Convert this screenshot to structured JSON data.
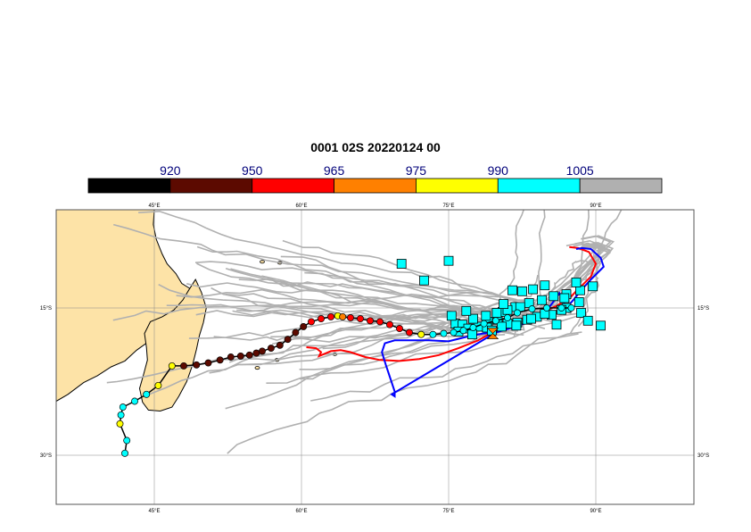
{
  "title": "0001 02S 20220124 00",
  "colorbar": {
    "labels": [
      "920",
      "950",
      "965",
      "975",
      "990",
      "1005"
    ],
    "colors": [
      "#000000",
      "#5c0a00",
      "#ff0000",
      "#ff8000",
      "#ffff00",
      "#00ffff",
      "#b0b0b0"
    ]
  },
  "map": {
    "lon_range": [
      35,
      100
    ],
    "lat_range": [
      -35,
      -5
    ],
    "land_color": "#fde3a7",
    "lon_labels": [
      "45°E",
      "60°E",
      "75°E",
      "90°E"
    ],
    "lat_labels": [
      "15°S",
      "30°S"
    ]
  },
  "tracks": {
    "observed": [
      [
        46.8,
        -20.9
      ],
      [
        48.0,
        -20.9
      ],
      [
        49.3,
        -20.8
      ],
      [
        50.5,
        -20.6
      ],
      [
        51.7,
        -20.3
      ],
      [
        52.8,
        -20.0
      ],
      [
        53.8,
        -19.9
      ],
      [
        54.7,
        -19.8
      ],
      [
        55.4,
        -19.6
      ],
      [
        56.0,
        -19.4
      ],
      [
        56.9,
        -19.1
      ],
      [
        57.8,
        -18.8
      ],
      [
        58.6,
        -18.2
      ],
      [
        59.4,
        -17.5
      ],
      [
        60.2,
        -16.9
      ],
      [
        61.0,
        -16.4
      ],
      [
        62.0,
        -16.1
      ],
      [
        63.0,
        -15.9
      ],
      [
        63.7,
        -15.8
      ],
      [
        64.2,
        -15.9
      ],
      [
        65.0,
        -16.0
      ],
      [
        66.0,
        -16.1
      ],
      [
        67.0,
        -16.3
      ],
      [
        68.0,
        -16.4
      ],
      [
        69.0,
        -16.7
      ],
      [
        70.0,
        -17.1
      ],
      [
        71.0,
        -17.5
      ],
      [
        72.2,
        -17.7
      ],
      [
        73.4,
        -17.7
      ],
      [
        74.5,
        -17.6
      ],
      [
        75.5,
        -17.5
      ],
      [
        76.5,
        -17.3
      ],
      [
        77.5,
        -17.0
      ],
      [
        78.6,
        -16.6
      ],
      [
        79.8,
        -16.3
      ],
      [
        81.0,
        -16.0
      ],
      [
        82.0,
        -15.5
      ],
      [
        83.5,
        -15.1
      ],
      [
        85.0,
        -15.0
      ],
      [
        86.5,
        -15.0
      ],
      [
        87.5,
        -15.0
      ]
    ],
    "observed_colors": [
      "#ffff00",
      "#5c0a00",
      "#5c0a00",
      "#5c0a00",
      "#5c0a00",
      "#5c0a00",
      "#5c0a00",
      "#5c0a00",
      "#5c0a00",
      "#5c0a00",
      "#5c0a00",
      "#5c0a00",
      "#5c0a00",
      "#5c0a00",
      "#5c0a00",
      "#ff0000",
      "#ff0000",
      "#ff0000",
      "#ffff00",
      "#ff8000",
      "#ff0000",
      "#ff0000",
      "#ff0000",
      "#ff0000",
      "#ff0000",
      "#ff0000",
      "#ff0000",
      "#ffff00",
      "#00ffff",
      "#00ffff",
      "#00ffff",
      "#00ffff",
      "#00ffff",
      "#00ffff",
      "#00ffff",
      "#00ffff",
      "#00ffff",
      "#00ffff",
      "#00ffff",
      "#00ffff",
      "#00ffff"
    ],
    "observed_tail": [
      [
        42.0,
        -29.8
      ],
      [
        42.2,
        -28.5
      ],
      [
        41.5,
        -26.8
      ],
      [
        41.6,
        -25.9
      ],
      [
        41.8,
        -25.1
      ],
      [
        43.0,
        -24.5
      ],
      [
        44.2,
        -23.8
      ],
      [
        45.4,
        -22.9
      ]
    ],
    "observed_tail_colors": [
      "#00ffff",
      "#00ffff",
      "#ffff00",
      "#00ffff",
      "#00ffff",
      "#00ffff",
      "#00ffff",
      "#ffff00"
    ],
    "red_forecast": [
      [
        60.5,
        -19.0
      ],
      [
        61.5,
        -19.1
      ],
      [
        62.0,
        -19.5
      ],
      [
        61.8,
        -19.9
      ],
      [
        63.0,
        -19.4
      ],
      [
        64.0,
        -19.3
      ],
      [
        65.0,
        -19.5
      ],
      [
        66.5,
        -20.0
      ],
      [
        68.0,
        -20.3
      ],
      [
        70.0,
        -20.4
      ],
      [
        72.0,
        -20.2
      ],
      [
        74.0,
        -19.8
      ],
      [
        76.0,
        -19.1
      ],
      [
        78.0,
        -18.3
      ],
      [
        80.0,
        -17.2
      ],
      [
        82.0,
        -16.3
      ],
      [
        84.0,
        -15.6
      ],
      [
        86.0,
        -14.8
      ],
      [
        87.5,
        -13.8
      ],
      [
        88.5,
        -12.8
      ],
      [
        89.5,
        -11.8
      ],
      [
        90.0,
        -10.5
      ],
      [
        89.3,
        -9.3
      ],
      [
        88.2,
        -8.9
      ],
      [
        87.3,
        -8.8
      ]
    ],
    "blue_forecast": [
      [
        79.8,
        -17.5
      ],
      [
        78.5,
        -17.6
      ],
      [
        77.0,
        -17.9
      ],
      [
        75.0,
        -18.4
      ],
      [
        73.0,
        -18.3
      ],
      [
        71.0,
        -18.3
      ],
      [
        69.5,
        -18.3
      ],
      [
        68.5,
        -18.6
      ],
      [
        68.2,
        -19.5
      ],
      [
        68.6,
        -20.8
      ],
      [
        69.0,
        -22.0
      ],
      [
        69.5,
        -23.5
      ],
      [
        69.5,
        -24.0
      ],
      [
        69.2,
        -23.8
      ],
      [
        79.8,
        -17.5
      ],
      [
        81.5,
        -17.0
      ],
      [
        83.0,
        -16.5
      ],
      [
        84.5,
        -15.8
      ],
      [
        85.5,
        -14.6
      ],
      [
        86.3,
        -13.5
      ],
      [
        87.0,
        -15.0
      ],
      [
        87.7,
        -14.2
      ],
      [
        88.5,
        -13.2
      ],
      [
        89.6,
        -12.0
      ],
      [
        90.8,
        -10.8
      ],
      [
        90.5,
        -9.9
      ],
      [
        89.5,
        -9.0
      ],
      [
        88.6,
        -8.9
      ],
      [
        88.0,
        -9.0
      ]
    ],
    "forecast_points": [
      [
        75.7,
        -16.6
      ],
      [
        76.4,
        -16.7
      ],
      [
        77.0,
        -17.1
      ],
      [
        78.0,
        -16.9
      ],
      [
        79.0,
        -16.4
      ],
      [
        80.0,
        -16.2
      ],
      [
        81.0,
        -16.6
      ],
      [
        82.0,
        -16.5
      ],
      [
        83.0,
        -16.2
      ],
      [
        84.0,
        -15.9
      ],
      [
        85.5,
        -15.7
      ],
      [
        87.0,
        -15.0
      ],
      [
        88.5,
        -15.5
      ],
      [
        89.2,
        -16.3
      ],
      [
        86.0,
        -16.7
      ],
      [
        80.5,
        -15.4
      ],
      [
        81.8,
        -14.9
      ],
      [
        83.2,
        -14.5
      ],
      [
        84.5,
        -14.2
      ],
      [
        85.7,
        -13.8
      ],
      [
        87.0,
        -13.6
      ],
      [
        88.4,
        -13.2
      ],
      [
        89.7,
        -12.8
      ],
      [
        77.5,
        -16.1
      ],
      [
        78.8,
        -15.8
      ],
      [
        79.9,
        -15.5
      ],
      [
        81.0,
        -15.2
      ],
      [
        82.3,
        -14.9
      ],
      [
        76.0,
        -17.4
      ],
      [
        77.4,
        -17.7
      ],
      [
        78.9,
        -17.0
      ],
      [
        80.4,
        -16.9
      ],
      [
        81.9,
        -16.8
      ],
      [
        83.4,
        -16.1
      ],
      [
        84.8,
        -15.6
      ],
      [
        86.5,
        -15.2
      ],
      [
        75.3,
        -15.8
      ],
      [
        76.8,
        -15.3
      ],
      [
        82.5,
        -13.3
      ],
      [
        84.8,
        -12.7
      ],
      [
        86.8,
        -14.0
      ],
      [
        88.3,
        -14.4
      ],
      [
        79.4,
        -17.3
      ],
      [
        80.6,
        -14.6
      ],
      [
        81.5,
        -13.2
      ],
      [
        72.5,
        -12.2
      ],
      [
        70.2,
        -10.5
      ],
      [
        75.0,
        -10.2
      ],
      [
        90.5,
        -16.8
      ],
      [
        88.0,
        -12.4
      ],
      [
        83.6,
        -13.1
      ]
    ],
    "current_marker": [
      79.5,
      -17.6
    ]
  }
}
